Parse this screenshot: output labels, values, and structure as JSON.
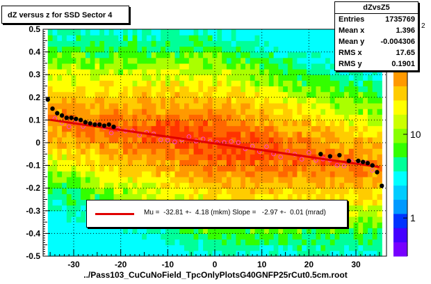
{
  "title": "dZ versus  z for SSD Sector 4",
  "stats": {
    "name": "dZvsZ5",
    "rows": [
      {
        "label": "Entries",
        "value": "1735769"
      },
      {
        "label": "Mean x",
        "value": "1.396"
      },
      {
        "label": "Mean y",
        "value": "-0.004306"
      },
      {
        "label": "RMS x",
        "value": "17.65"
      },
      {
        "label": "RMS y",
        "value": "0.1901"
      }
    ]
  },
  "legend": {
    "text": "Mu =  -32.81 +-  4.18 (mkm) Slope =   -2.97 +-  0.01 (mrad)",
    "color": "#e00000"
  },
  "colors": {
    "fit_line": "#e00000",
    "profile_points": "#000000",
    "profile_open": "#ff44cc",
    "dotted_grid": "#000000"
  },
  "chart_data": {
    "type": "heatmap",
    "xlabel": "../Pass103_CuCuNoField_TpcOnlyPlotsG40GNFP25rCut0.5cm.root",
    "ylabel": "",
    "xlim": [
      -36.5,
      36.5
    ],
    "ylim": [
      -0.5,
      0.5
    ],
    "x_ticks": [
      -30,
      -20,
      -10,
      0,
      10,
      20,
      30
    ],
    "x_tick_labels": [
      "-30",
      "-20",
      "-10",
      "0",
      "10",
      "20",
      "30"
    ],
    "y_ticks": [
      -0.5,
      -0.4,
      -0.3,
      -0.2,
      -0.1,
      0,
      0.1,
      0.2,
      0.3,
      0.4,
      0.5
    ],
    "y_tick_labels": [
      "-0.5",
      "-0.4",
      "-0.3",
      "-0.2",
      "-0.1",
      "0",
      "0.1",
      "0.2",
      "0.3",
      "0.4",
      "0.5"
    ],
    "z_scale": "log",
    "z_ticks": [
      1,
      10
    ],
    "z_tick_labels": [
      "1",
      "10"
    ],
    "z_top_label": "10",
    "z_top_exponent": "2",
    "grid": true,
    "fit": {
      "mu_mkm": -32.81,
      "slope_mrad": -2.97
    },
    "profile": {
      "x": [
        -35.5,
        -34.5,
        -33.5,
        -32.5,
        -31.5,
        -30.5,
        -29.5,
        -28.5,
        -27.5,
        -26.5,
        -25.5,
        -24.5,
        -23.5,
        -22.5,
        -21.5,
        22.5,
        24.5,
        26.5,
        28.5,
        30.5,
        31.5,
        32.5,
        33.5,
        34.5,
        35.5
      ],
      "y": [
        0.19,
        0.15,
        0.13,
        0.12,
        0.11,
        0.11,
        0.105,
        0.1,
        0.09,
        0.085,
        0.08,
        0.08,
        0.075,
        0.08,
        0.07,
        -0.05,
        -0.06,
        -0.055,
        -0.08,
        -0.08,
        -0.085,
        -0.09,
        -0.1,
        -0.13,
        -0.19
      ]
    }
  }
}
